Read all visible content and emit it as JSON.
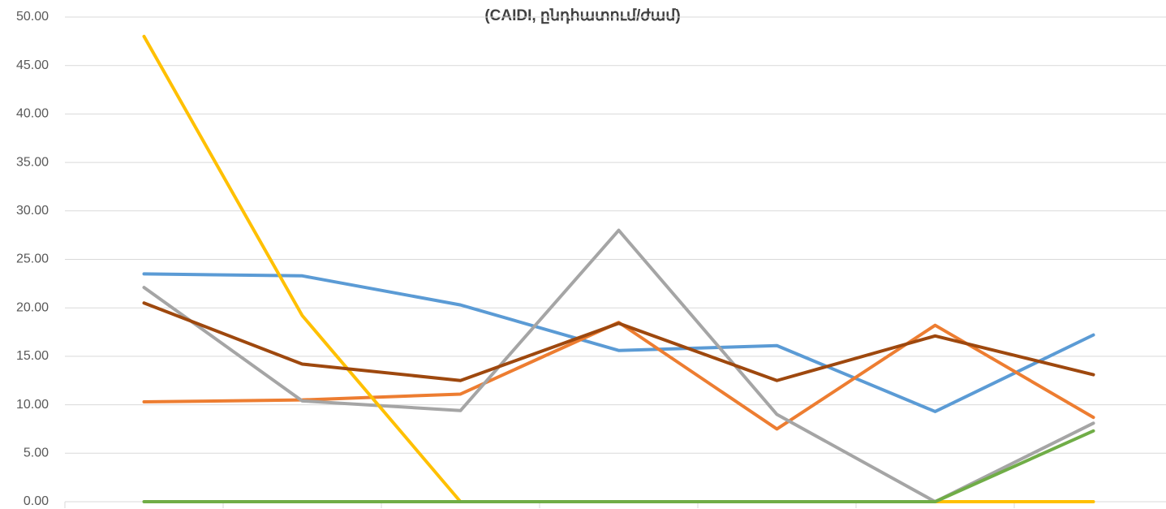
{
  "chart_data": {
    "type": "line",
    "title": "(CAIDI, ընդհատում/ժամ)",
    "categories": [
      null,
      null,
      null,
      null,
      null,
      null,
      null
    ],
    "series": [
      {
        "color": "#5b9bd5",
        "values": [
          23.5,
          23.3,
          20.3,
          15.6,
          16.1,
          9.3,
          17.2
        ]
      },
      {
        "color": "#ed7d31",
        "values": [
          10.3,
          10.5,
          11.1,
          18.5,
          7.5,
          18.2,
          8.7
        ]
      },
      {
        "color": "#a5a5a5",
        "values": [
          22.1,
          10.4,
          9.4,
          28.0,
          9.0,
          0,
          8.1
        ]
      },
      {
        "color": "#ffc000",
        "values": [
          48.0,
          19.2,
          0,
          0,
          0,
          0,
          0
        ]
      },
      {
        "color": "#9e480e",
        "values": [
          20.5,
          14.2,
          12.5,
          18.4,
          12.5,
          17.1,
          13.1
        ]
      },
      {
        "color": "#70ad47",
        "values": [
          0,
          0,
          0,
          0,
          0,
          0,
          7.3
        ]
      }
    ],
    "ylim": [
      0,
      50
    ],
    "yticks": [
      {
        "value": 0,
        "label": "0.00"
      },
      {
        "value": 5,
        "label": "5.00"
      },
      {
        "value": 10,
        "label": "10.00"
      },
      {
        "value": 15,
        "label": "15.00"
      },
      {
        "value": 20,
        "label": "20.00"
      },
      {
        "value": 25,
        "label": "25.00"
      },
      {
        "value": 30,
        "label": "30.00"
      },
      {
        "value": 35,
        "label": "35.00"
      },
      {
        "value": 40,
        "label": "40.00"
      },
      {
        "value": 45,
        "label": "45.00"
      },
      {
        "value": 50,
        "label": "50.00"
      }
    ],
    "grid": true
  }
}
